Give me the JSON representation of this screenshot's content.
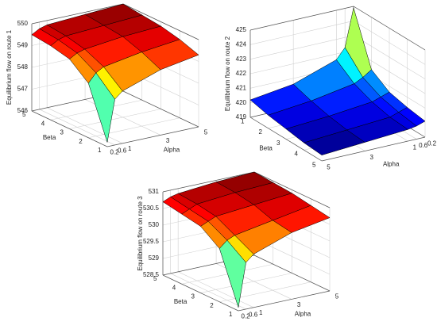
{
  "chart_data": [
    {
      "type": "surface",
      "zlabel": "Equilibrium flow on route 1",
      "xlabel": "Alpha",
      "ylabel": "Beta",
      "x": [
        0.2,
        0.6,
        1,
        3,
        5
      ],
      "y": [
        1,
        2,
        3,
        4,
        5
      ],
      "z": [
        [
          546.2,
          548.1,
          548.4,
          549.0,
          549.3
        ],
        [
          548.5,
          548.9,
          549.1,
          549.4,
          549.6
        ],
        [
          549.2,
          549.4,
          549.5,
          549.7,
          549.8
        ],
        [
          549.4,
          549.6,
          549.7,
          549.8,
          549.9
        ],
        [
          549.5,
          549.7,
          549.8,
          549.9,
          550.0
        ]
      ],
      "xlim": [
        0.2,
        5
      ],
      "ylim": [
        1,
        5
      ],
      "zlim": [
        546,
        550
      ],
      "xticks": [
        0.2,
        0.6,
        1,
        3,
        5
      ],
      "yticks": [
        1,
        2,
        3,
        4,
        5
      ],
      "zticks": [
        546,
        547,
        548,
        549,
        550
      ],
      "grid": true,
      "colormap": "jet"
    },
    {
      "type": "surface",
      "zlabel": "Equilibrium flow on route 2",
      "xlabel": "Alpha",
      "ylabel": "Beta",
      "x": [
        0.2,
        0.6,
        1,
        3,
        5
      ],
      "y": [
        1,
        2,
        3,
        4,
        5
      ],
      "z": [
        [
          424.9,
          422.3,
          421.6,
          420.6,
          420.2
        ],
        [
          421.4,
          421.0,
          420.7,
          420.2,
          419.9
        ],
        [
          420.6,
          420.4,
          420.2,
          419.9,
          419.7
        ],
        [
          420.3,
          420.1,
          419.9,
          419.7,
          419.5
        ],
        [
          420.1,
          419.9,
          419.8,
          419.6,
          419.4
        ]
      ],
      "xlim": [
        0.2,
        5
      ],
      "ylim": [
        1,
        5
      ],
      "zlim": [
        419,
        425
      ],
      "xticks": [
        0.2,
        0.6,
        1,
        3,
        5
      ],
      "yticks": [
        1,
        2,
        3,
        4,
        5
      ],
      "zticks": [
        419,
        420,
        421,
        422,
        423,
        424,
        425
      ],
      "grid": true,
      "colormap": "jet"
    },
    {
      "type": "surface",
      "zlabel": "Equilibrium flow on route 3",
      "xlabel": "Alpha",
      "ylabel": "Beta",
      "x": [
        0.2,
        0.6,
        1,
        3,
        5
      ],
      "y": [
        1,
        2,
        3,
        4,
        5
      ],
      "z": [
        [
          528.6,
          529.9,
          530.1,
          530.5,
          530.7
        ],
        [
          530.1,
          530.3,
          530.4,
          530.6,
          530.8
        ],
        [
          530.5,
          530.6,
          530.7,
          530.8,
          530.9
        ],
        [
          530.6,
          530.7,
          530.8,
          530.9,
          530.95
        ],
        [
          530.7,
          530.8,
          530.85,
          530.95,
          531.0
        ]
      ],
      "xlim": [
        0.2,
        5
      ],
      "ylim": [
        1,
        5
      ],
      "zlim": [
        528.5,
        531
      ],
      "xticks": [
        0.2,
        0.6,
        1,
        3,
        5
      ],
      "yticks": [
        1,
        2,
        3,
        4,
        5
      ],
      "zticks": [
        528.5,
        529,
        529.5,
        530,
        530.5,
        531
      ],
      "grid": true,
      "colormap": "jet"
    }
  ]
}
